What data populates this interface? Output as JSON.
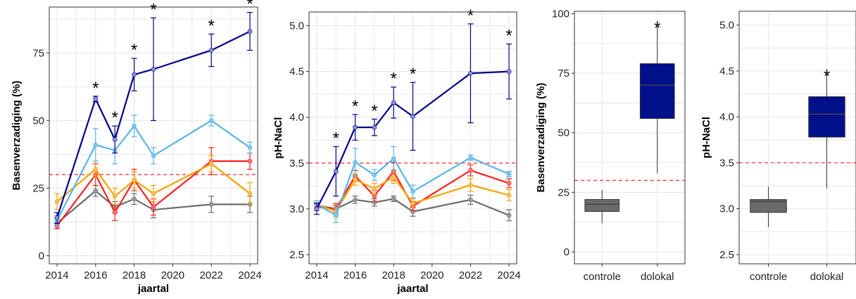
{
  "colors": {
    "panel_bg": "#ffffff",
    "grid": "#e6e6e6",
    "axis": "#333333",
    "threshold": "#ff3b3b",
    "box_controle": "#6a6a6a",
    "box_dolokal": "#000f8a"
  },
  "chart_data": [
    {
      "type": "line",
      "xlabel": "jaartal",
      "ylabel": "Basenverzadiging (%)",
      "xlim": [
        2013.6,
        2024.4
      ],
      "ylim": [
        -3,
        92
      ],
      "x_ticks": [
        2014,
        2016,
        2018,
        2020,
        2022,
        2024
      ],
      "y_ticks": [
        0,
        25,
        50,
        75
      ],
      "y_tick_labels": [
        "0",
        "25",
        "50",
        "75"
      ],
      "threshold": 30,
      "grid": true,
      "series": [
        {
          "color": "#00008b",
          "marker": "#8a94d0",
          "x": [
            2014,
            2016,
            2017,
            2018,
            2019,
            2022,
            2024
          ],
          "y": [
            14,
            58,
            43,
            67,
            69,
            76,
            83
          ],
          "err": [
            2,
            1,
            5,
            6,
            19,
            6,
            7
          ]
        },
        {
          "color": "#5ab4e6",
          "marker": "#7fc6ee",
          "x": [
            2014,
            2016,
            2017,
            2018,
            2019,
            2022,
            2024
          ],
          "y": [
            13,
            41,
            39,
            48,
            37,
            50,
            40
          ],
          "err": [
            2,
            6,
            5,
            4,
            3,
            2,
            2
          ]
        },
        {
          "color": "#f5a300",
          "marker": "#f5c060",
          "x": [
            2014,
            2016,
            2017,
            2018,
            2019,
            2022,
            2024
          ],
          "y": [
            20,
            32,
            22,
            28,
            23,
            34,
            23
          ],
          "err": [
            3,
            3,
            3,
            3,
            3,
            3,
            4
          ]
        },
        {
          "color": "#ff2020",
          "marker": "#ff7070",
          "x": [
            2014,
            2016,
            2017,
            2018,
            2019,
            2022,
            2024
          ],
          "y": [
            11,
            30,
            16,
            28,
            18,
            35,
            35
          ],
          "err": [
            1,
            4,
            3,
            4,
            3,
            5,
            3
          ]
        },
        {
          "color": "#6a6a6a",
          "marker": "#9a9a9a",
          "x": [
            2014,
            2016,
            2017,
            2018,
            2019,
            2022,
            2024
          ],
          "y": [
            12,
            24,
            18,
            21,
            17,
            19,
            19
          ],
          "err": [
            2,
            2,
            2,
            2,
            3,
            3,
            3
          ]
        }
      ],
      "annotations": [
        {
          "x": 2016,
          "y": 58,
          "err": 1,
          "text": "*"
        },
        {
          "x": 2017,
          "y": 43,
          "err": 5,
          "text": "*"
        },
        {
          "x": 2018,
          "y": 67,
          "err": 6,
          "text": "*"
        },
        {
          "x": 2019,
          "y": 69,
          "err": 19,
          "text": "*"
        },
        {
          "x": 2022,
          "y": 76,
          "err": 6,
          "text": "*"
        },
        {
          "x": 2024,
          "y": 83,
          "err": 7,
          "text": "*"
        }
      ]
    },
    {
      "type": "line",
      "xlabel": "jaartal",
      "ylabel": "pH-NaCl",
      "xlim": [
        2013.6,
        2024.4
      ],
      "ylim": [
        2.4,
        5.15
      ],
      "x_ticks": [
        2014,
        2016,
        2018,
        2020,
        2022,
        2024
      ],
      "y_ticks": [
        2.5,
        3.0,
        3.5,
        4.0,
        4.5,
        5.0
      ],
      "y_tick_labels": [
        "2.5",
        "3.0",
        "3.5",
        "4.0",
        "4.5",
        "5.0"
      ],
      "threshold": 3.5,
      "grid": true,
      "series": [
        {
          "color": "#00008b",
          "marker": "#8a94d0",
          "x": [
            2014,
            2015,
            2016,
            2017,
            2018,
            2019,
            2022,
            2024
          ],
          "y": [
            3.0,
            3.41,
            3.89,
            3.89,
            4.16,
            4.01,
            4.48,
            4.5
          ],
          "err": [
            0.06,
            0.27,
            0.14,
            0.09,
            0.17,
            0.37,
            0.54,
            0.3
          ]
        },
        {
          "color": "#5ab4e6",
          "marker": "#7fc6ee",
          "x": [
            2014,
            2015,
            2016,
            2017,
            2018,
            2019,
            2022,
            2024
          ],
          "y": [
            3.05,
            2.93,
            3.51,
            3.37,
            3.55,
            3.19,
            3.56,
            3.38
          ],
          "err": [
            0.04,
            0.08,
            0.15,
            0.06,
            0.13,
            0.07,
            0.03,
            0.03
          ]
        },
        {
          "color": "#f5a300",
          "marker": "#f5c060",
          "x": [
            2014,
            2015,
            2016,
            2017,
            2018,
            2019,
            2022,
            2024
          ],
          "y": [
            3.05,
            2.97,
            3.32,
            3.22,
            3.35,
            3.06,
            3.26,
            3.15
          ],
          "err": [
            0.04,
            0.06,
            0.06,
            0.06,
            0.07,
            0.05,
            0.07,
            0.06
          ]
        },
        {
          "color": "#ff2020",
          "marker": "#ff7070",
          "x": [
            2014,
            2015,
            2016,
            2017,
            2018,
            2019,
            2022,
            2024
          ],
          "y": [
            3.02,
            3.0,
            3.36,
            3.14,
            3.41,
            3.03,
            3.42,
            3.28
          ],
          "err": [
            0.04,
            0.06,
            0.06,
            0.06,
            0.1,
            0.05,
            0.06,
            0.05
          ]
        },
        {
          "color": "#6a6a6a",
          "marker": "#9a9a9a",
          "x": [
            2014,
            2015,
            2016,
            2017,
            2018,
            2019,
            2022,
            2024
          ],
          "y": [
            3.04,
            3.0,
            3.1,
            3.07,
            3.11,
            2.97,
            3.1,
            2.93
          ],
          "err": [
            0.03,
            0.04,
            0.04,
            0.04,
            0.03,
            0.05,
            0.05,
            0.06
          ]
        }
      ],
      "annotations": [
        {
          "x": 2015,
          "y": 3.41,
          "err": 0.27,
          "text": "*"
        },
        {
          "x": 2016,
          "y": 3.89,
          "err": 0.14,
          "text": "*"
        },
        {
          "x": 2017,
          "y": 3.89,
          "err": 0.09,
          "text": "*"
        },
        {
          "x": 2018,
          "y": 4.16,
          "err": 0.17,
          "text": "*"
        },
        {
          "x": 2019,
          "y": 4.01,
          "err": 0.37,
          "text": "*"
        },
        {
          "x": 2022,
          "y": 4.48,
          "err": 0.54,
          "text": "*"
        },
        {
          "x": 2024,
          "y": 4.5,
          "err": 0.3,
          "text": "*"
        }
      ]
    },
    {
      "type": "box",
      "xlabel": "",
      "ylabel": "Basenverzadiging (%)",
      "ylim": [
        -5,
        101
      ],
      "y_ticks": [
        0,
        25,
        50,
        75,
        100
      ],
      "y_tick_labels": [
        "0",
        "25",
        "50",
        "75",
        "100"
      ],
      "threshold": 30,
      "grid": true,
      "categories": [
        "controle",
        "dolokal"
      ],
      "boxes": [
        {
          "min": 12,
          "q1": 17,
          "median": 20,
          "q3": 22,
          "max": 26,
          "color": "#6a6a6a",
          "star": false
        },
        {
          "min": 33,
          "q1": 56,
          "median": 70,
          "q3": 79,
          "max": 97,
          "color": "#000f8a",
          "star": true
        }
      ],
      "annotations": [
        {
          "category": "dolokal",
          "text": "*"
        }
      ]
    },
    {
      "type": "box",
      "xlabel": "",
      "ylabel": "pH-NaCl",
      "ylim": [
        2.4,
        5.15
      ],
      "y_ticks": [
        2.5,
        3.0,
        3.5,
        4.0,
        4.5,
        5.0
      ],
      "y_tick_labels": [
        "2.5",
        "3.0",
        "3.5",
        "4.0",
        "4.5",
        "5.0"
      ],
      "threshold": 3.5,
      "grid": true,
      "categories": [
        "controle",
        "dolokal"
      ],
      "boxes": [
        {
          "min": 2.8,
          "q1": 2.96,
          "median": 3.08,
          "q3": 3.1,
          "max": 3.24,
          "color": "#6a6a6a",
          "star": false
        },
        {
          "min": 3.22,
          "q1": 3.78,
          "median": 4.03,
          "q3": 4.22,
          "max": 4.52,
          "color": "#000f8a",
          "star": true
        }
      ],
      "annotations": [
        {
          "category": "dolokal",
          "text": "*"
        }
      ]
    }
  ]
}
